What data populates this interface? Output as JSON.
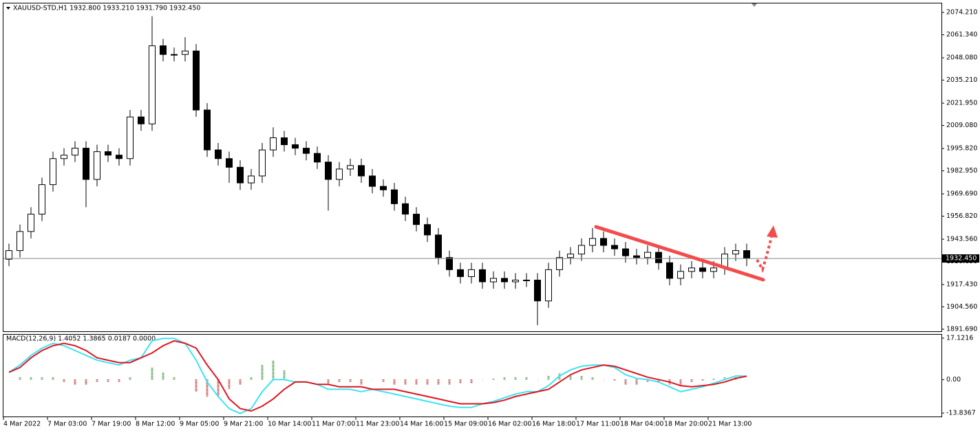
{
  "chart_data": {
    "type": "candlestick",
    "title": "XAUUSD-STD,H1  1932.800 1933.210 1931.790 1932.450",
    "categories": [
      "4 Mar 2022",
      null,
      null,
      null,
      "7 Mar 03:00",
      null,
      null,
      null,
      "7 Mar 19:00",
      null,
      null,
      null,
      "8 Mar 12:00",
      null,
      null,
      null,
      "9 Mar 05:00",
      null,
      null,
      null,
      "9 Mar 21:00",
      null,
      null,
      null,
      "10 Mar 14:00",
      null,
      null,
      null,
      "11 Mar 07:00",
      null,
      null,
      null,
      "11 Mar 23:00",
      null,
      null,
      null,
      "14 Mar 16:00",
      null,
      null,
      null,
      "15 Mar 09:00",
      null,
      null,
      null,
      "16 Mar 02:00",
      null,
      null,
      null,
      "16 Mar 18:00",
      null,
      null,
      null,
      "17 Mar 11:00",
      null,
      null,
      null,
      "18 Mar 04:00",
      null,
      null,
      null,
      "18 Mar 20:00",
      null,
      null,
      null,
      "21 Mar 13:00",
      null,
      null,
      null
    ],
    "open": [
      1932,
      1937,
      1948,
      1958,
      1975,
      1990,
      1992,
      1996,
      1978,
      1994,
      1992,
      1990,
      2014,
      2010,
      2055,
      2050,
      2050,
      2052,
      2018,
      1995,
      1990,
      1985,
      1976,
      1980,
      1995,
      2002,
      1998,
      1996,
      1993,
      1988,
      1978,
      1984,
      1986,
      1980,
      1974,
      1972,
      1964,
      1958,
      1952,
      1946,
      1933,
      1926,
      1922,
      1926,
      1919,
      1921,
      1919,
      1920,
      1920,
      1908,
      1926,
      1933,
      1935,
      1940,
      1944,
      1940,
      1938,
      1934,
      1933,
      1936,
      1930,
      1921,
      1925,
      1927,
      1925,
      1927,
      1935,
      1937
    ],
    "high": [
      1941,
      1952,
      1962,
      1979,
      1994,
      1996,
      2000,
      2000,
      1998,
      1998,
      1996,
      2018,
      2018,
      2072,
      2059,
      2054,
      2060,
      2056,
      2022,
      1999,
      1994,
      1989,
      1984,
      1999,
      2008,
      2006,
      2002,
      2000,
      1997,
      1992,
      1988,
      1990,
      1990,
      1984,
      1978,
      1976,
      1968,
      1962,
      1956,
      1950,
      1937,
      1930,
      1930,
      1930,
      1925,
      1925,
      1924,
      1924,
      1924,
      1930,
      1937,
      1939,
      1944,
      1950,
      1948,
      1944,
      1942,
      1938,
      1940,
      1940,
      1934,
      1929,
      1931,
      1931,
      1931,
      1939,
      1941,
      1941
    ],
    "low": [
      1928,
      1933,
      1944,
      1954,
      1971,
      1986,
      1988,
      1962,
      1974,
      1988,
      1986,
      1986,
      2006,
      2006,
      2046,
      2046,
      2046,
      2014,
      1991,
      1986,
      1976,
      1972,
      1972,
      1976,
      1991,
      1994,
      1992,
      1989,
      1984,
      1960,
      1974,
      1980,
      1976,
      1970,
      1968,
      1960,
      1954,
      1948,
      1942,
      1929,
      1922,
      1918,
      1918,
      1915,
      1915,
      1915,
      1915,
      1916,
      1894,
      1904,
      1922,
      1929,
      1931,
      1936,
      1936,
      1934,
      1930,
      1929,
      1929,
      1926,
      1917,
      1917,
      1921,
      1921,
      1921,
      1923,
      1931,
      1928
    ],
    "close": [
      1937,
      1948,
      1958,
      1975,
      1990,
      1992,
      1996,
      1978,
      1994,
      1992,
      1990,
      2014,
      2010,
      2055,
      2050,
      2050,
      2052,
      2018,
      1995,
      1990,
      1985,
      1976,
      1980,
      1995,
      2002,
      1998,
      1996,
      1993,
      1988,
      1978,
      1984,
      1986,
      1980,
      1974,
      1972,
      1964,
      1958,
      1952,
      1946,
      1933,
      1926,
      1922,
      1926,
      1919,
      1921,
      1919,
      1920,
      1920,
      1908,
      1926,
      1933,
      1935,
      1940,
      1944,
      1940,
      1938,
      1934,
      1933,
      1936,
      1930,
      1921,
      1925,
      1927,
      1925,
      1927,
      1935,
      1937,
      1932.45
    ],
    "up_color": "#ffffff",
    "down_color": "#000000",
    "ylim": [
      1890.5,
      2079.4
    ],
    "yticks": [
      {
        "value": 2074.21,
        "label": "2074.210"
      },
      {
        "value": 2061.34,
        "label": "2061.340"
      },
      {
        "value": 2048.08,
        "label": "2048.080"
      },
      {
        "value": 2035.21,
        "label": "2035.210"
      },
      {
        "value": 2021.95,
        "label": "2021.950"
      },
      {
        "value": 2009.08,
        "label": "2009.080"
      },
      {
        "value": 1995.82,
        "label": "1995.820"
      },
      {
        "value": 1982.95,
        "label": "1982.950"
      },
      {
        "value": 1969.69,
        "label": "1969.690"
      },
      {
        "value": 1956.82,
        "label": "1956.820"
      },
      {
        "value": 1943.56,
        "label": "1943.560"
      },
      {
        "value": 1930.69,
        "label": "1930.690"
      },
      {
        "value": 1917.43,
        "label": "1917.430"
      },
      {
        "value": 1904.56,
        "label": "1904.560"
      },
      {
        "value": 1891.69,
        "label": "1891.690"
      }
    ],
    "last_price": {
      "value": 1932.45,
      "label": "1932.450"
    },
    "indicator": {
      "type": "macd",
      "label": "MACD(12,26,9) 1.4052 1.3865 0.0187 0.0000",
      "macd": {
        "color": "#3de3f2",
        "values": [
          3,
          6,
          10,
          13,
          15,
          14,
          12,
          10,
          8,
          7,
          6,
          8,
          9,
          16,
          17,
          17,
          15,
          8,
          -1,
          -7,
          -12,
          -14,
          -12,
          -5,
          0,
          0,
          -1,
          -1,
          -2,
          -4,
          -4,
          -4,
          -5,
          -4,
          -5,
          -6,
          -7,
          -8,
          -9,
          -10,
          -11,
          -11.5,
          -11.5,
          -10,
          -9,
          -7.5,
          -6,
          -5,
          -5,
          -2.5,
          1.5,
          4,
          5.5,
          6,
          6,
          5,
          2,
          0.5,
          0,
          -1,
          -3,
          -5,
          -4,
          -3,
          -1.5,
          0,
          1.5,
          1.4052
        ]
      },
      "signal": {
        "color": "#e0141e",
        "values": [
          3,
          5,
          9,
          12,
          14,
          15,
          14,
          12,
          9,
          8,
          7,
          7,
          9,
          11,
          14,
          16,
          15,
          13,
          6,
          0,
          -8,
          -12,
          -13,
          -11,
          -8,
          -4,
          -1,
          -1,
          -2,
          -2,
          -3,
          -3,
          -3,
          -4,
          -4,
          -4,
          -5,
          -6,
          -7,
          -8,
          -9,
          -10,
          -10,
          -10,
          -9.5,
          -8.5,
          -7,
          -6,
          -5,
          -4,
          -1,
          2,
          4,
          5,
          6,
          5.5,
          4,
          2.5,
          1,
          0,
          -1,
          -2.5,
          -3,
          -2.5,
          -2,
          -1,
          0.5,
          1.3865
        ]
      },
      "histogram": {
        "up_color": "#2e8b2e",
        "down_color": "#b22222",
        "values": [
          0,
          1,
          1,
          1,
          1,
          -1,
          -2,
          -2,
          -1,
          -1,
          -1,
          1,
          0,
          5,
          3,
          1,
          0,
          -5,
          -7,
          -7,
          -4,
          -2,
          1,
          6,
          8,
          4,
          0,
          0,
          0,
          -2,
          -1,
          -1,
          -2,
          0,
          -1,
          -2,
          -2,
          -2,
          -2,
          -2,
          -2,
          -1.5,
          -1.5,
          0,
          0.5,
          1,
          1,
          1,
          0,
          1.5,
          2.5,
          2,
          1.5,
          1,
          0,
          -0.5,
          -2,
          -2,
          -1,
          -1,
          -2,
          -2.5,
          -1,
          -0.5,
          0.5,
          1,
          1,
          0.0187
        ]
      },
      "ylim": [
        -15.26,
        18.54
      ],
      "yticks": [
        17.1216,
        {
          "value": 0,
          "label": "0.00"
        },
        -13.8367
      ]
    }
  }
}
